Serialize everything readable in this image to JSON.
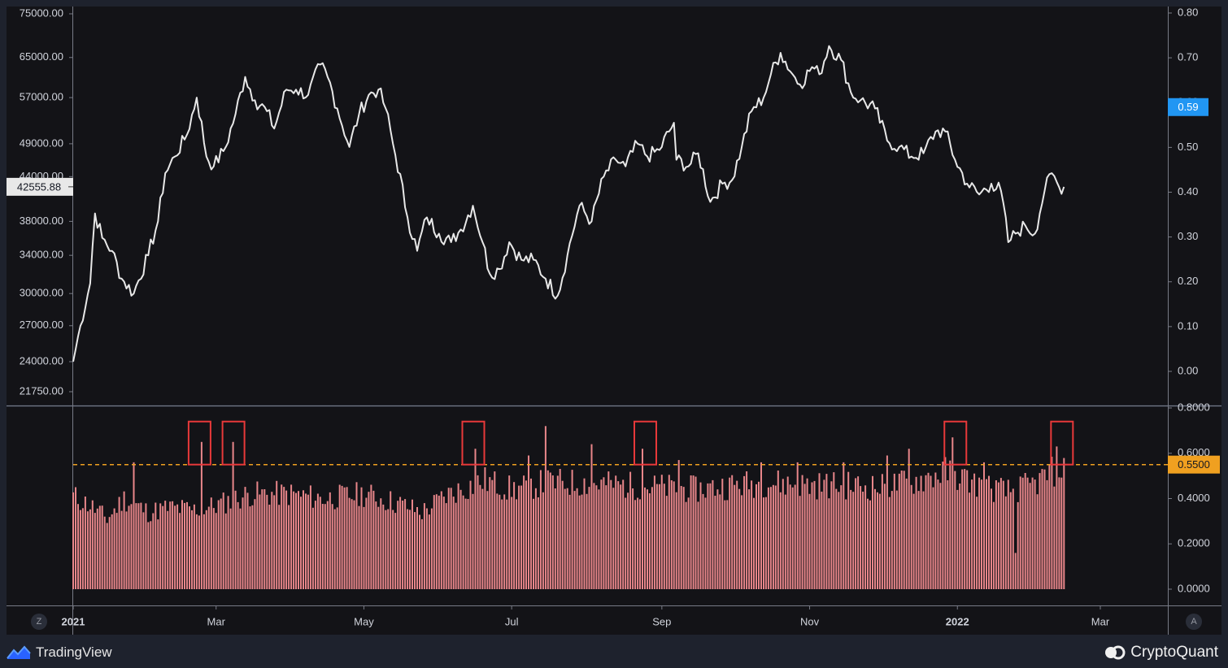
{
  "colors": {
    "background": "#1e222d",
    "pane": "#131317",
    "price_line": "#e8e8e8",
    "bars": "#e8868a",
    "threshold": "#f0a020",
    "highlight_box": "#e8393a",
    "right_badge": "#2196f3",
    "left_badge_bg": "#e8e8e8"
  },
  "branding": {
    "tradingview": "TradingView",
    "cryptoquant": "CryptoQuant"
  },
  "toolbar": {
    "log_scale_button": "Z",
    "auto_scale_button": "A"
  },
  "chart_data": [
    {
      "type": "line",
      "series": [
        {
          "scale": "left-price",
          "x_start": "2021-01-01",
          "x_end": "2022-02-14",
          "anchors": [
            [
              "2021-01-01",
              24000
            ],
            [
              "2021-01-04",
              27000
            ],
            [
              "2021-01-08",
              31000
            ],
            [
              "2021-01-10",
              39000
            ],
            [
              "2021-01-13",
              36000
            ],
            [
              "2021-01-17",
              34500
            ],
            [
              "2021-01-21",
              31500
            ],
            [
              "2021-01-26",
              30000
            ],
            [
              "2021-02-01",
              34000
            ],
            [
              "2021-02-05",
              38000
            ],
            [
              "2021-02-08",
              44500
            ],
            [
              "2021-02-12",
              47000
            ],
            [
              "2021-02-17",
              50500
            ],
            [
              "2021-02-21",
              57000
            ],
            [
              "2021-02-25",
              47000
            ],
            [
              "2021-02-28",
              45500
            ],
            [
              "2021-03-05",
              48500
            ],
            [
              "2021-03-09",
              54000
            ],
            [
              "2021-03-13",
              61000
            ],
            [
              "2021-03-17",
              56500
            ],
            [
              "2021-03-22",
              54500
            ],
            [
              "2021-03-25",
              51500
            ],
            [
              "2021-03-30",
              58500
            ],
            [
              "2021-04-03",
              58500
            ],
            [
              "2021-04-08",
              57500
            ],
            [
              "2021-04-13",
              63500
            ],
            [
              "2021-04-16",
              61000
            ],
            [
              "2021-04-20",
              55000
            ],
            [
              "2021-04-25",
              48500
            ],
            [
              "2021-04-29",
              54000
            ],
            [
              "2021-05-03",
              57500
            ],
            [
              "2021-05-07",
              58500
            ],
            [
              "2021-05-10",
              55000
            ],
            [
              "2021-05-13",
              49000
            ],
            [
              "2021-05-19",
              38500
            ],
            [
              "2021-05-23",
              34500
            ],
            [
              "2021-05-27",
              38500
            ],
            [
              "2021-06-01",
              36500
            ],
            [
              "2021-06-06",
              35500
            ],
            [
              "2021-06-10",
              37000
            ],
            [
              "2021-06-15",
              40000
            ],
            [
              "2021-06-19",
              35500
            ],
            [
              "2021-06-22",
              32000
            ],
            [
              "2021-06-26",
              32500
            ],
            [
              "2021-06-30",
              35500
            ],
            [
              "2021-07-05",
              33500
            ],
            [
              "2021-07-10",
              33500
            ],
            [
              "2021-07-15",
              31500
            ],
            [
              "2021-07-20",
              29800
            ],
            [
              "2021-07-24",
              34000
            ],
            [
              "2021-07-29",
              40000
            ],
            [
              "2021-08-03",
              38000
            ],
            [
              "2021-08-08",
              44000
            ],
            [
              "2021-08-13",
              46500
            ],
            [
              "2021-08-17",
              45500
            ],
            [
              "2021-08-22",
              49000
            ],
            [
              "2021-08-26",
              47000
            ],
            [
              "2021-08-31",
              48000
            ],
            [
              "2021-09-06",
              52500
            ],
            [
              "2021-09-07",
              46500
            ],
            [
              "2021-09-12",
              45500
            ],
            [
              "2021-09-16",
              47500
            ],
            [
              "2021-09-21",
              40500
            ],
            [
              "2021-09-26",
              43000
            ],
            [
              "2021-09-30",
              43500
            ],
            [
              "2021-10-04",
              48500
            ],
            [
              "2021-10-08",
              54500
            ],
            [
              "2021-10-13",
              57000
            ],
            [
              "2021-10-16",
              61500
            ],
            [
              "2021-10-20",
              66000
            ],
            [
              "2021-10-25",
              61500
            ],
            [
              "2021-10-28",
              59500
            ],
            [
              "2021-11-02",
              63000
            ],
            [
              "2021-11-05",
              61500
            ],
            [
              "2021-11-09",
              67500
            ],
            [
              "2021-11-14",
              64500
            ],
            [
              "2021-11-18",
              58000
            ],
            [
              "2021-11-22",
              56500
            ],
            [
              "2021-11-28",
              55000
            ],
            [
              "2021-12-03",
              49500
            ],
            [
              "2021-12-08",
              48500
            ],
            [
              "2021-12-13",
              47000
            ],
            [
              "2021-12-18",
              47500
            ],
            [
              "2021-12-23",
              51000
            ],
            [
              "2021-12-27",
              51000
            ],
            [
              "2021-12-31",
              46500
            ],
            [
              "2022-01-05",
              43000
            ],
            [
              "2022-01-10",
              41500
            ],
            [
              "2022-01-15",
              43000
            ],
            [
              "2022-01-19",
              42000
            ],
            [
              "2022-01-22",
              35500
            ],
            [
              "2022-01-25",
              36500
            ],
            [
              "2022-01-29",
              37500
            ],
            [
              "2022-02-02",
              36500
            ],
            [
              "2022-02-06",
              42000
            ],
            [
              "2022-02-09",
              44500
            ],
            [
              "2022-02-12",
              42500
            ],
            [
              "2022-02-14",
              42555.88
            ]
          ],
          "last_value_label": "42555.88"
        },
        {
          "scale": "right-ratio",
          "last_value_label": "0.59"
        }
      ],
      "left_ticks": [
        "75000.00",
        "65000.00",
        "57000.00",
        "49000.00",
        "44000.00",
        "38000.00",
        "34000.00",
        "30000.00",
        "27000.00",
        "24000.00",
        "21750.00"
      ],
      "right_ticks": [
        "0.80",
        "0.70",
        "0.60",
        "0.50",
        "0.40",
        "0.30",
        "0.20",
        "0.10",
        "0.00"
      ],
      "ylim_left": [
        21750,
        75000
      ],
      "ylim_right": [
        0,
        0.8
      ],
      "y_scale_left": "log",
      "grid": false
    },
    {
      "type": "bar",
      "x_start": "2021-01-01",
      "x_end": "2022-02-14",
      "profile_anchors": [
        [
          "2021-01-01",
          0.41
        ],
        [
          "2021-01-08",
          0.37
        ],
        [
          "2021-01-15",
          0.31
        ],
        [
          "2021-01-22",
          0.4
        ],
        [
          "2021-02-01",
          0.34
        ],
        [
          "2021-02-10",
          0.36
        ],
        [
          "2021-02-20",
          0.35
        ],
        [
          "2021-03-01",
          0.37
        ],
        [
          "2021-03-15",
          0.42
        ],
        [
          "2021-04-01",
          0.42
        ],
        [
          "2021-04-15",
          0.4
        ],
        [
          "2021-05-01",
          0.42
        ],
        [
          "2021-05-15",
          0.38
        ],
        [
          "2021-05-25",
          0.34
        ],
        [
          "2021-06-05",
          0.42
        ],
        [
          "2021-06-20",
          0.48
        ],
        [
          "2021-07-01",
          0.44
        ],
        [
          "2021-07-15",
          0.47
        ],
        [
          "2021-08-01",
          0.47
        ],
        [
          "2021-08-15",
          0.46
        ],
        [
          "2021-09-01",
          0.45
        ],
        [
          "2021-09-15",
          0.44
        ],
        [
          "2021-10-01",
          0.46
        ],
        [
          "2021-10-15",
          0.47
        ],
        [
          "2021-11-01",
          0.46
        ],
        [
          "2021-11-15",
          0.46
        ],
        [
          "2021-12-01",
          0.45
        ],
        [
          "2021-12-15",
          0.48
        ],
        [
          "2021-12-28",
          0.52
        ],
        [
          "2022-01-10",
          0.46
        ],
        [
          "2022-01-22",
          0.43
        ],
        [
          "2022-02-01",
          0.46
        ],
        [
          "2022-02-14",
          0.55
        ]
      ],
      "spikes": [
        [
          "2021-01-26",
          0.56
        ],
        [
          "2021-02-23",
          0.65
        ],
        [
          "2021-03-08",
          0.65
        ],
        [
          "2021-06-16",
          0.62
        ],
        [
          "2021-07-08",
          0.59
        ],
        [
          "2021-07-15",
          0.72
        ],
        [
          "2021-08-03",
          0.64
        ],
        [
          "2021-08-24",
          0.62
        ],
        [
          "2021-09-08",
          0.57
        ],
        [
          "2021-10-12",
          0.56
        ],
        [
          "2021-10-27",
          0.56
        ],
        [
          "2021-11-15",
          0.56
        ],
        [
          "2021-12-03",
          0.59
        ],
        [
          "2021-12-12",
          0.62
        ],
        [
          "2021-12-30",
          0.67
        ],
        [
          "2022-01-12",
          0.56
        ],
        [
          "2022-01-25",
          0.16
        ],
        [
          "2022-02-11",
          0.63
        ]
      ],
      "threshold": 0.55,
      "threshold_label": "0.5500",
      "highlights": [
        "2021-02-22",
        "2021-03-08",
        "2021-06-15",
        "2021-08-25",
        "2021-12-31",
        "2022-02-13"
      ],
      "ticks": [
        "0.8000",
        "0.6000",
        "0.4000",
        "0.2000",
        "0.0000"
      ],
      "ylim": [
        0,
        0.8
      ]
    }
  ],
  "x_axis": {
    "labels": [
      {
        "date": "2021-01-01",
        "label": "2021",
        "bold": true
      },
      {
        "date": "2021-03-01",
        "label": "Mar",
        "bold": false
      },
      {
        "date": "2021-05-01",
        "label": "May",
        "bold": false
      },
      {
        "date": "2021-07-01",
        "label": "Jul",
        "bold": false
      },
      {
        "date": "2021-09-01",
        "label": "Sep",
        "bold": false
      },
      {
        "date": "2021-11-01",
        "label": "Nov",
        "bold": false
      },
      {
        "date": "2022-01-01",
        "label": "2022",
        "bold": true
      },
      {
        "date": "2022-03-01",
        "label": "Mar",
        "bold": false
      }
    ]
  }
}
